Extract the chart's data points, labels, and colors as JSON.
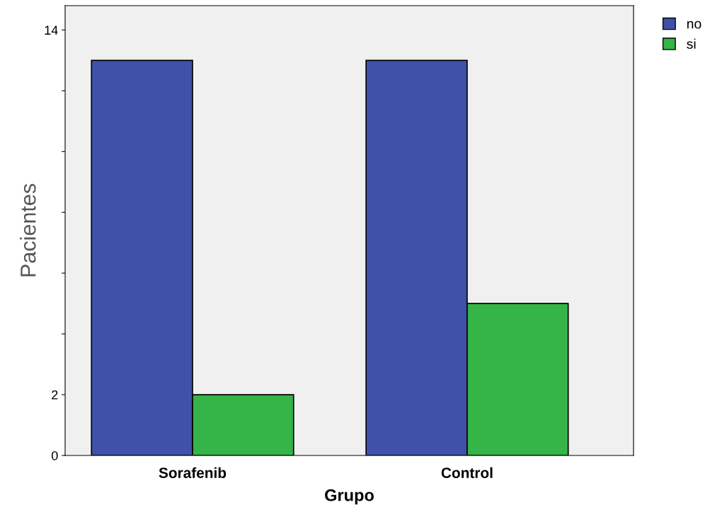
{
  "chart_data": {
    "type": "bar",
    "xlabel": "Grupo",
    "ylabel": "Pacientes",
    "categories": [
      "Sorafenib",
      "Control"
    ],
    "series": [
      {
        "name": "no",
        "color": "#3f51a8",
        "values": [
          13,
          13
        ]
      },
      {
        "name": "si",
        "color": "#35b447",
        "values": [
          2,
          5
        ]
      }
    ],
    "ylim": [
      0,
      14.8
    ],
    "yticks": [
      0,
      2,
      {
        "value": 4,
        "label": null
      },
      {
        "value": 6,
        "label": null
      },
      {
        "value": 8,
        "label": null
      },
      {
        "value": 10,
        "label": null
      },
      {
        "value": 12,
        "label": null
      },
      14
    ],
    "grid": false,
    "legend": "top right"
  }
}
